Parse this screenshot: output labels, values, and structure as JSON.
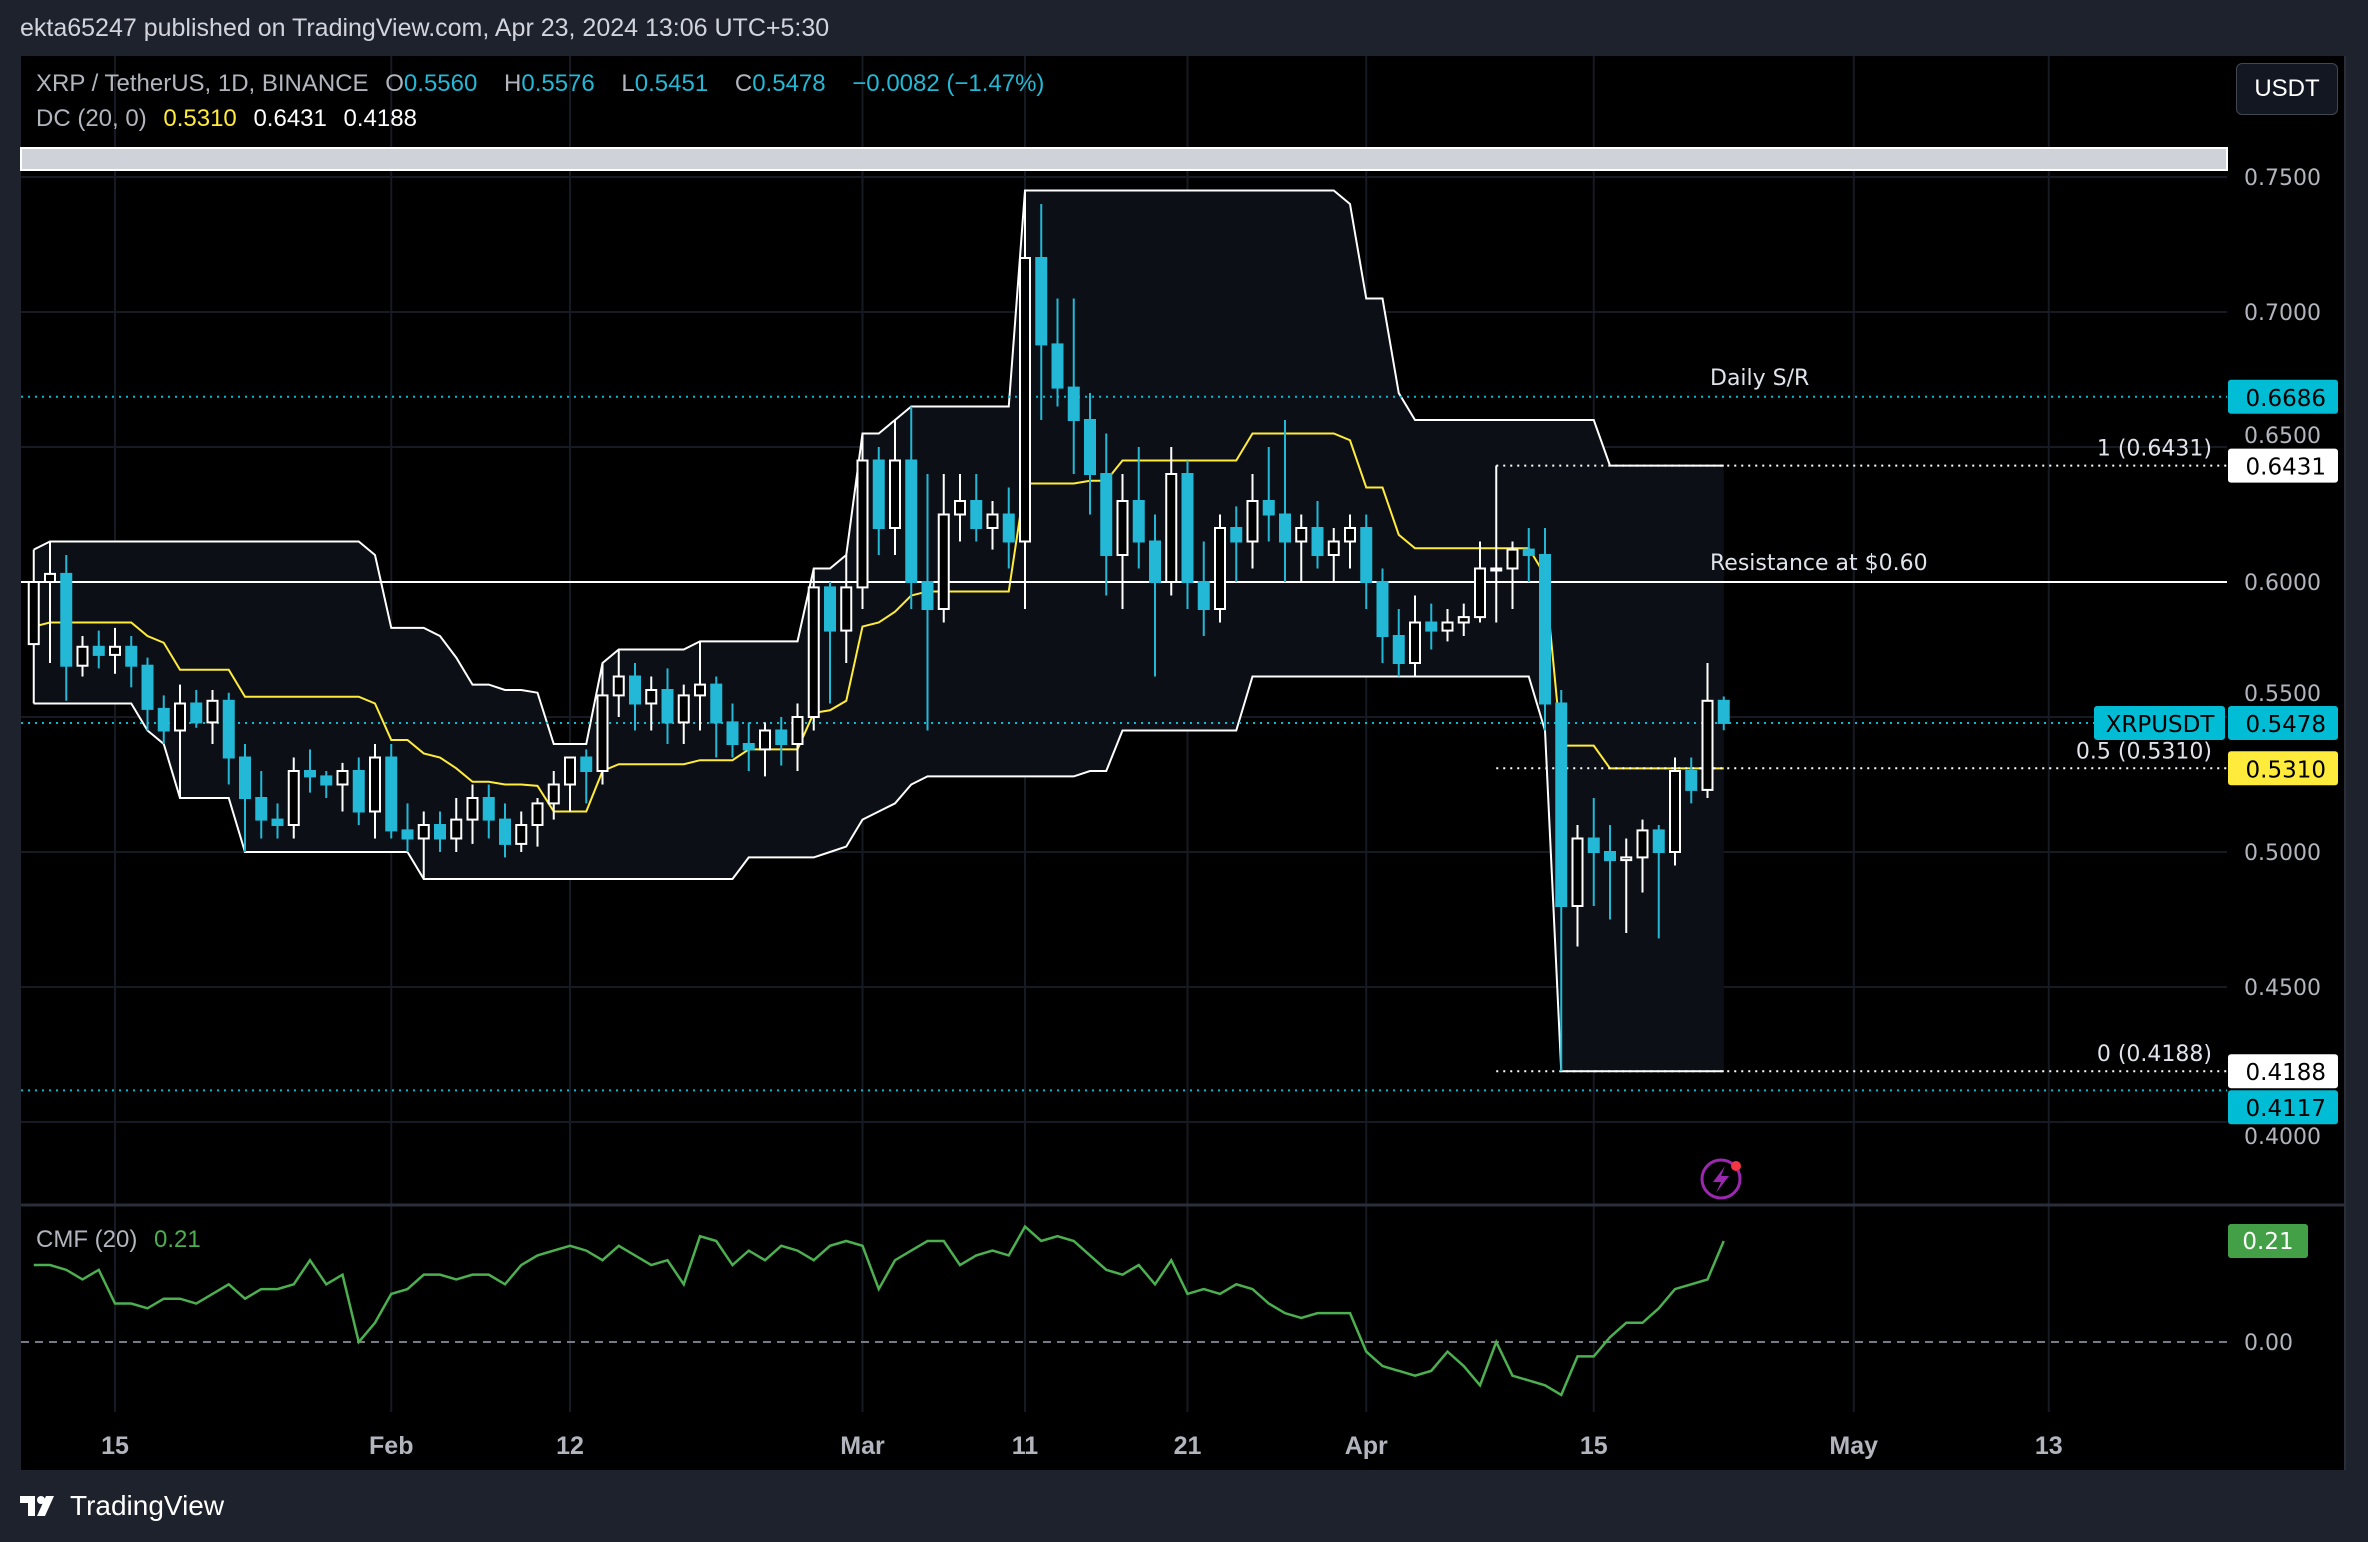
{
  "published": "ekta65247 published on TradingView.com, Apr 23, 2024 13:06 UTC+5:30",
  "legend": {
    "symbol": "XRP / TetherUS, 1D, BINANCE",
    "o_label": "O",
    "o": "0.5560",
    "h_label": "H",
    "h": "0.5576",
    "l_label": "L",
    "l": "0.5451",
    "c_label": "C",
    "c": "0.5478",
    "change": "−0.0082 (−1.47%)",
    "dc_label": "DC (20, 0)",
    "dc_mid": "0.5310",
    "dc_upper": "0.6431",
    "dc_lower": "0.4188",
    "cmf_label": "CMF (20)",
    "cmf_value": "0.21"
  },
  "currency_button": "USDT",
  "footer_brand": "TradingView",
  "colors": {
    "up": "#ffffff",
    "down": "#22b8d6",
    "dc_band": "#ffffff",
    "dc_mid": "#ffeb3b",
    "cmf": "#4caf50",
    "accent": "#00bcd4"
  },
  "chart_data": {
    "type": "candlestick",
    "price_axis": {
      "ticks": [
        "0.7500",
        "0.7000",
        "0.6500",
        "0.6000",
        "0.5500",
        "0.5000",
        "0.4500",
        "0.4000"
      ],
      "range": [
        0.385,
        0.775
      ]
    },
    "time_axis": {
      "ticks": [
        {
          "date": "2024-01-15",
          "label": "15"
        },
        {
          "date": "2024-02-01",
          "label": "Feb"
        },
        {
          "date": "2024-02-12",
          "label": "12"
        },
        {
          "date": "2024-03-01",
          "label": "Mar"
        },
        {
          "date": "2024-03-11",
          "label": "11"
        },
        {
          "date": "2024-03-21",
          "label": "21"
        },
        {
          "date": "2024-04-01",
          "label": "Apr"
        },
        {
          "date": "2024-04-15",
          "label": "15"
        },
        {
          "date": "2024-05-01",
          "label": "May"
        },
        {
          "date": "2024-05-13",
          "label": "13"
        }
      ]
    },
    "candles_ohlc": [
      [
        "2024-01-10",
        0.577,
        0.612,
        0.555,
        0.6
      ],
      [
        "2024-01-11",
        0.6,
        0.615,
        0.57,
        0.603
      ],
      [
        "2024-01-12",
        0.603,
        0.61,
        0.556,
        0.569
      ],
      [
        "2024-01-13",
        0.569,
        0.58,
        0.565,
        0.576
      ],
      [
        "2024-01-14",
        0.576,
        0.582,
        0.568,
        0.573
      ],
      [
        "2024-01-15",
        0.573,
        0.583,
        0.566,
        0.576
      ],
      [
        "2024-01-16",
        0.576,
        0.58,
        0.561,
        0.569
      ],
      [
        "2024-01-17",
        0.569,
        0.572,
        0.545,
        0.553
      ],
      [
        "2024-01-18",
        0.553,
        0.558,
        0.54,
        0.545
      ],
      [
        "2024-01-19",
        0.545,
        0.562,
        0.52,
        0.555
      ],
      [
        "2024-01-20",
        0.555,
        0.56,
        0.546,
        0.548
      ],
      [
        "2024-01-21",
        0.548,
        0.56,
        0.54,
        0.556
      ],
      [
        "2024-01-22",
        0.556,
        0.559,
        0.525,
        0.535
      ],
      [
        "2024-01-23",
        0.535,
        0.54,
        0.5,
        0.52
      ],
      [
        "2024-01-24",
        0.52,
        0.53,
        0.505,
        0.512
      ],
      [
        "2024-01-25",
        0.512,
        0.518,
        0.505,
        0.51
      ],
      [
        "2024-01-26",
        0.51,
        0.535,
        0.505,
        0.53
      ],
      [
        "2024-01-27",
        0.53,
        0.538,
        0.522,
        0.528
      ],
      [
        "2024-01-28",
        0.528,
        0.53,
        0.52,
        0.525
      ],
      [
        "2024-01-29",
        0.525,
        0.533,
        0.515,
        0.53
      ],
      [
        "2024-01-30",
        0.53,
        0.535,
        0.51,
        0.515
      ],
      [
        "2024-01-31",
        0.515,
        0.54,
        0.505,
        0.535
      ],
      [
        "2024-02-01",
        0.535,
        0.54,
        0.505,
        0.508
      ],
      [
        "2024-02-02",
        0.508,
        0.518,
        0.5,
        0.505
      ],
      [
        "2024-02-03",
        0.505,
        0.515,
        0.49,
        0.51
      ],
      [
        "2024-02-04",
        0.51,
        0.515,
        0.5,
        0.505
      ],
      [
        "2024-02-05",
        0.505,
        0.52,
        0.5,
        0.512
      ],
      [
        "2024-02-06",
        0.512,
        0.525,
        0.503,
        0.52
      ],
      [
        "2024-02-07",
        0.52,
        0.525,
        0.505,
        0.512
      ],
      [
        "2024-02-08",
        0.512,
        0.518,
        0.498,
        0.503
      ],
      [
        "2024-02-09",
        0.503,
        0.515,
        0.5,
        0.51
      ],
      [
        "2024-02-10",
        0.51,
        0.52,
        0.502,
        0.518
      ],
      [
        "2024-02-11",
        0.518,
        0.53,
        0.512,
        0.525
      ],
      [
        "2024-02-12",
        0.525,
        0.535,
        0.515,
        0.535
      ],
      [
        "2024-02-13",
        0.535,
        0.538,
        0.518,
        0.53
      ],
      [
        "2024-02-14",
        0.53,
        0.57,
        0.525,
        0.558
      ],
      [
        "2024-02-15",
        0.558,
        0.575,
        0.55,
        0.565
      ],
      [
        "2024-02-16",
        0.565,
        0.57,
        0.545,
        0.555
      ],
      [
        "2024-02-17",
        0.555,
        0.565,
        0.545,
        0.56
      ],
      [
        "2024-02-18",
        0.56,
        0.568,
        0.54,
        0.548
      ],
      [
        "2024-02-19",
        0.548,
        0.562,
        0.54,
        0.558
      ],
      [
        "2024-02-20",
        0.558,
        0.578,
        0.545,
        0.562
      ],
      [
        "2024-02-21",
        0.562,
        0.565,
        0.535,
        0.548
      ],
      [
        "2024-02-22",
        0.548,
        0.555,
        0.535,
        0.54
      ],
      [
        "2024-02-23",
        0.54,
        0.548,
        0.53,
        0.538
      ],
      [
        "2024-02-24",
        0.538,
        0.548,
        0.528,
        0.545
      ],
      [
        "2024-02-25",
        0.545,
        0.55,
        0.532,
        0.54
      ],
      [
        "2024-02-26",
        0.54,
        0.555,
        0.53,
        0.55
      ],
      [
        "2024-02-27",
        0.55,
        0.605,
        0.545,
        0.598
      ],
      [
        "2024-02-28",
        0.598,
        0.6,
        0.555,
        0.582
      ],
      [
        "2024-02-29",
        0.582,
        0.61,
        0.57,
        0.598
      ],
      [
        "2024-03-01",
        0.598,
        0.655,
        0.59,
        0.645
      ],
      [
        "2024-03-02",
        0.645,
        0.65,
        0.61,
        0.62
      ],
      [
        "2024-03-03",
        0.62,
        0.66,
        0.61,
        0.645
      ],
      [
        "2024-03-04",
        0.645,
        0.665,
        0.59,
        0.6
      ],
      [
        "2024-03-05",
        0.6,
        0.64,
        0.545,
        0.59
      ],
      [
        "2024-03-06",
        0.59,
        0.64,
        0.585,
        0.625
      ],
      [
        "2024-03-07",
        0.625,
        0.64,
        0.615,
        0.63
      ],
      [
        "2024-03-08",
        0.63,
        0.64,
        0.615,
        0.62
      ],
      [
        "2024-03-09",
        0.62,
        0.63,
        0.612,
        0.625
      ],
      [
        "2024-03-10",
        0.625,
        0.635,
        0.605,
        0.615
      ],
      [
        "2024-03-11",
        0.615,
        0.745,
        0.59,
        0.72
      ],
      [
        "2024-03-12",
        0.72,
        0.74,
        0.66,
        0.688
      ],
      [
        "2024-03-13",
        0.688,
        0.705,
        0.665,
        0.672
      ],
      [
        "2024-03-14",
        0.672,
        0.705,
        0.64,
        0.66
      ],
      [
        "2024-03-15",
        0.66,
        0.67,
        0.625,
        0.64
      ],
      [
        "2024-03-16",
        0.64,
        0.655,
        0.595,
        0.61
      ],
      [
        "2024-03-17",
        0.61,
        0.64,
        0.59,
        0.63
      ],
      [
        "2024-03-18",
        0.63,
        0.65,
        0.605,
        0.615
      ],
      [
        "2024-03-19",
        0.615,
        0.625,
        0.565,
        0.6
      ],
      [
        "2024-03-20",
        0.6,
        0.65,
        0.595,
        0.64
      ],
      [
        "2024-03-21",
        0.64,
        0.645,
        0.59,
        0.6
      ],
      [
        "2024-03-22",
        0.6,
        0.615,
        0.58,
        0.59
      ],
      [
        "2024-03-23",
        0.59,
        0.625,
        0.585,
        0.62
      ],
      [
        "2024-03-24",
        0.62,
        0.628,
        0.6,
        0.615
      ],
      [
        "2024-03-25",
        0.615,
        0.64,
        0.605,
        0.63
      ],
      [
        "2024-03-26",
        0.63,
        0.65,
        0.615,
        0.625
      ],
      [
        "2024-03-27",
        0.625,
        0.66,
        0.6,
        0.615
      ],
      [
        "2024-03-28",
        0.615,
        0.625,
        0.6,
        0.62
      ],
      [
        "2024-03-29",
        0.62,
        0.63,
        0.605,
        0.61
      ],
      [
        "2024-03-30",
        0.61,
        0.62,
        0.6,
        0.615
      ],
      [
        "2024-03-31",
        0.615,
        0.625,
        0.605,
        0.62
      ],
      [
        "2024-04-01",
        0.62,
        0.625,
        0.59,
        0.6
      ],
      [
        "2024-04-02",
        0.6,
        0.605,
        0.57,
        0.58
      ],
      [
        "2024-04-03",
        0.58,
        0.59,
        0.565,
        0.57
      ],
      [
        "2024-04-04",
        0.57,
        0.595,
        0.565,
        0.585
      ],
      [
        "2024-04-05",
        0.585,
        0.592,
        0.575,
        0.582
      ],
      [
        "2024-04-06",
        0.582,
        0.59,
        0.578,
        0.585
      ],
      [
        "2024-04-07",
        0.585,
        0.592,
        0.58,
        0.587
      ],
      [
        "2024-04-08",
        0.587,
        0.615,
        0.585,
        0.605
      ],
      [
        "2024-04-09",
        0.605,
        0.6431,
        0.585,
        0.605
      ],
      [
        "2024-04-10",
        0.605,
        0.615,
        0.59,
        0.612
      ],
      [
        "2024-04-11",
        0.612,
        0.62,
        0.6,
        0.61
      ],
      [
        "2024-04-12",
        0.61,
        0.62,
        0.545,
        0.555
      ],
      [
        "2024-04-13",
        0.555,
        0.56,
        0.4188,
        0.48
      ],
      [
        "2024-04-14",
        0.48,
        0.51,
        0.465,
        0.505
      ],
      [
        "2024-04-15",
        0.505,
        0.52,
        0.48,
        0.5
      ],
      [
        "2024-04-16",
        0.5,
        0.51,
        0.475,
        0.497
      ],
      [
        "2024-04-17",
        0.497,
        0.505,
        0.47,
        0.498
      ],
      [
        "2024-04-18",
        0.498,
        0.512,
        0.485,
        0.508
      ],
      [
        "2024-04-19",
        0.508,
        0.51,
        0.468,
        0.5
      ],
      [
        "2024-04-20",
        0.5,
        0.535,
        0.495,
        0.53
      ],
      [
        "2024-04-21",
        0.53,
        0.535,
        0.518,
        0.523
      ],
      [
        "2024-04-22",
        0.523,
        0.57,
        0.52,
        0.556
      ],
      [
        "2024-04-23",
        0.556,
        0.5576,
        0.5451,
        0.5478
      ]
    ],
    "donchian": {
      "period": 20,
      "offset": 0,
      "upper": 0.6431,
      "middle": 0.531,
      "lower": 0.4188
    },
    "cmf": {
      "period": 20,
      "axis_ticks": [
        "0.00"
      ],
      "values": [
        0.16,
        0.16,
        0.15,
        0.13,
        0.15,
        0.08,
        0.08,
        0.07,
        0.09,
        0.09,
        0.08,
        0.1,
        0.12,
        0.09,
        0.11,
        0.11,
        0.12,
        0.17,
        0.12,
        0.14,
        0.0,
        0.04,
        0.1,
        0.11,
        0.14,
        0.14,
        0.13,
        0.14,
        0.14,
        0.12,
        0.16,
        0.18,
        0.19,
        0.2,
        0.19,
        0.17,
        0.2,
        0.18,
        0.16,
        0.17,
        0.12,
        0.22,
        0.21,
        0.16,
        0.19,
        0.17,
        0.2,
        0.19,
        0.17,
        0.2,
        0.21,
        0.2,
        0.11,
        0.17,
        0.19,
        0.21,
        0.21,
        0.16,
        0.18,
        0.19,
        0.18,
        0.24,
        0.21,
        0.22,
        0.21,
        0.18,
        0.15,
        0.14,
        0.16,
        0.12,
        0.17,
        0.1,
        0.11,
        0.1,
        0.12,
        0.11,
        0.08,
        0.06,
        0.05,
        0.06,
        0.06,
        0.06,
        -0.02,
        -0.05,
        -0.06,
        -0.07,
        -0.06,
        -0.02,
        -0.05,
        -0.09,
        0.0,
        -0.07,
        -0.08,
        -0.09,
        -0.11,
        -0.03,
        -0.03,
        0.01,
        0.04,
        0.04,
        0.07,
        0.11,
        0.12,
        0.13,
        0.21
      ]
    },
    "annotations": [
      {
        "text": "Daily S/R",
        "price": 0.6686,
        "style": "dotted",
        "color": "#00bcd4",
        "badge": "0.6686"
      },
      {
        "text": "Resistance at $0.60",
        "price": 0.6,
        "style": "solid",
        "color": "#ffffff"
      },
      {
        "text": "1 (0.6431)",
        "price": 0.6431,
        "style": "dotted",
        "color": "#ffffff",
        "badge": "0.6431"
      },
      {
        "text": "0.5 (0.5310)",
        "price": 0.531,
        "style": "dotted",
        "color": "#ffffff",
        "badge": "0.5310"
      },
      {
        "text": "0 (0.4188)",
        "price": 0.4188,
        "style": "dotted",
        "color": "#ffffff",
        "badge": "0.4188"
      },
      {
        "text": "",
        "price": 0.4117,
        "style": "dotted",
        "color": "#00bcd4",
        "badge": "0.4117"
      }
    ],
    "last_price": {
      "symbol": "XRPUSDT",
      "value": "0.5478"
    }
  }
}
